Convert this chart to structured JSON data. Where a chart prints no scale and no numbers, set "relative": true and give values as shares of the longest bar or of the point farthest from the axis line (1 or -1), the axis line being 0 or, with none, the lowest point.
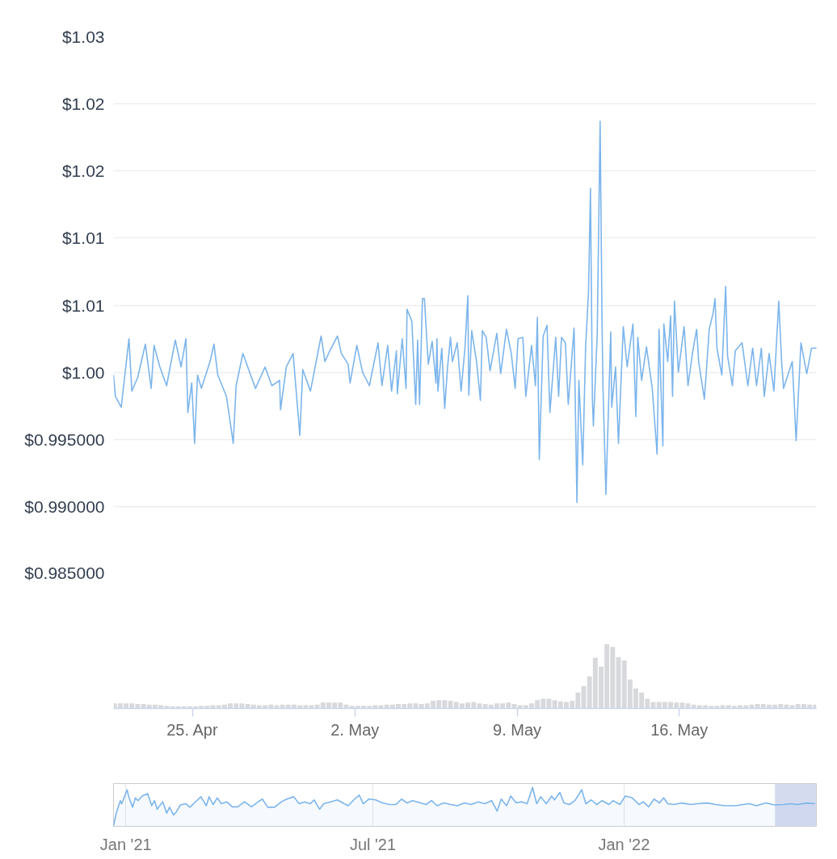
{
  "chart_data": [
    {
      "type": "line",
      "color": "#7cb5ec",
      "xlim": [
        "2022-04-21T14:00",
        "2022-05-21T22:00"
      ],
      "ylim": [
        0.985,
        1.025
      ],
      "yticks": [
        {
          "value": 0.985,
          "label": "$0.985000"
        },
        {
          "value": 0.99,
          "label": "$0.990000"
        },
        {
          "value": 0.995,
          "label": "$0.995000"
        },
        {
          "value": 1.0,
          "label": "$1.00"
        },
        {
          "value": 1.005,
          "label": "$1.01"
        },
        {
          "value": 1.01,
          "label": "$1.01"
        },
        {
          "value": 1.015,
          "label": "$1.02"
        },
        {
          "value": 1.02,
          "label": "$1.02"
        },
        {
          "value": 1.025,
          "label": "$1.03"
        }
      ],
      "grid": "y",
      "tick_labels": "y",
      "x": [
        "2022-04-21T14:00",
        "2022-04-21T16:00",
        "2022-04-21T22:00",
        "2022-04-22T06:00",
        "2022-04-22T09:00",
        "2022-04-22T15:00",
        "2022-04-22T23:00",
        "2022-04-23T05:00",
        "2022-04-23T08:00",
        "2022-04-23T14:00",
        "2022-04-23T21:00",
        "2022-04-24T06:00",
        "2022-04-24T12:00",
        "2022-04-24T17:00",
        "2022-04-24T19:00",
        "2022-04-24T23:00",
        "2022-04-25T02:00",
        "2022-04-25T05:00",
        "2022-04-25T09:00",
        "2022-04-25T18:00",
        "2022-04-25T22:00",
        "2022-04-26T02:00",
        "2022-04-26T11:00",
        "2022-04-26T18:00",
        "2022-04-26T21:00",
        "2022-04-27T04:00",
        "2022-04-27T12:00",
        "2022-04-27T17:00",
        "2022-04-28T03:00",
        "2022-04-28T10:00",
        "2022-04-28T18:00",
        "2022-04-28T19:00",
        "2022-04-29T01:00",
        "2022-04-29T08:00",
        "2022-04-29T15:00",
        "2022-04-29T18:00",
        "2022-04-30T02:00",
        "2022-04-30T13:00",
        "2022-04-30T17:00",
        "2022-04-30T22:00",
        "2022-05-01T06:00",
        "2022-05-01T10:00",
        "2022-05-01T17:00",
        "2022-05-01T19:00",
        "2022-05-02T02:00",
        "2022-05-02T08:00",
        "2022-05-02T15:00",
        "2022-05-03T00:00",
        "2022-05-03T04:00",
        "2022-05-03T10:00",
        "2022-05-03T14:00",
        "2022-05-03T19:00",
        "2022-05-03T20:00",
        "2022-05-04T01:00",
        "2022-05-04T05:00",
        "2022-05-04T06:00",
        "2022-05-04T11:00",
        "2022-05-04T15:00",
        "2022-05-04T17:00",
        "2022-05-04T19:00",
        "2022-05-04T22:00",
        "2022-05-05T00:00",
        "2022-05-05T04:00",
        "2022-05-05T08:00",
        "2022-05-05T12:00",
        "2022-05-05T13:00",
        "2022-05-05T14:00",
        "2022-05-05T18:00",
        "2022-05-05T21:00",
        "2022-05-06T00:00",
        "2022-05-06T03:00",
        "2022-05-06T05:00",
        "2022-05-06T10:00",
        "2022-05-06T14:00",
        "2022-05-06T18:00",
        "2022-05-06T21:00",
        "2022-05-06T22:00",
        "2022-05-07T01:00",
        "2022-05-07T06:00",
        "2022-05-07T10:00",
        "2022-05-07T12:00",
        "2022-05-07T16:00",
        "2022-05-07T20:00",
        "2022-05-08T03:00",
        "2022-05-08T07:00",
        "2022-05-08T13:00",
        "2022-05-08T18:00",
        "2022-05-08T22:00",
        "2022-05-09T01:00",
        "2022-05-09T06:00",
        "2022-05-09T09:00",
        "2022-05-09T15:00",
        "2022-05-09T19:00",
        "2022-05-09T21:00",
        "2022-05-09T23:00",
        "2022-05-10T03:00",
        "2022-05-10T07:00",
        "2022-05-10T10:00",
        "2022-05-10T16:00",
        "2022-05-10T19:00",
        "2022-05-10T22:00",
        "2022-05-11T02:00",
        "2022-05-11T05:00",
        "2022-05-11T11:00",
        "2022-05-11T14:00",
        "2022-05-11T16:00",
        "2022-05-11T20:00",
        "2022-05-11T23:00",
        "2022-05-12T02:00",
        "2022-05-12T04:00",
        "2022-05-12T06:00",
        "2022-05-12T07:00",
        "2022-05-12T11:00",
        "2022-05-12T14:00",
        "2022-05-12T16:00",
        "2022-05-12T17:00",
        "2022-05-12T20:00",
        "2022-05-13T01:00",
        "2022-05-13T02:00",
        "2022-05-13T06:00",
        "2022-05-13T09:00",
        "2022-05-13T14:00",
        "2022-05-13T18:00",
        "2022-05-14T00:00",
        "2022-05-14T03:00",
        "2022-05-14T05:00",
        "2022-05-14T09:00",
        "2022-05-14T14:00",
        "2022-05-14T20:00",
        "2022-05-15T01:00",
        "2022-05-15T03:00",
        "2022-05-15T07:00",
        "2022-05-15T08:00",
        "2022-05-15T12:00",
        "2022-05-15T15:00",
        "2022-05-15T17:00",
        "2022-05-15T19:00",
        "2022-05-15T23:00",
        "2022-05-16T05:00",
        "2022-05-16T09:00",
        "2022-05-16T14:00",
        "2022-05-16T18:00",
        "2022-05-16T20:00",
        "2022-05-17T02:00",
        "2022-05-17T07:00",
        "2022-05-17T11:00",
        "2022-05-17T13:00",
        "2022-05-17T15:00",
        "2022-05-17T17:00",
        "2022-05-17T20:00",
        "2022-05-18T00:00",
        "2022-05-18T02:00",
        "2022-05-18T07:00",
        "2022-05-18T10:00",
        "2022-05-18T17:00",
        "2022-05-18T23:00",
        "2022-05-19T04:00",
        "2022-05-19T08:00",
        "2022-05-19T13:00",
        "2022-05-19T16:00",
        "2022-05-19T21:00",
        "2022-05-20T02:00",
        "2022-05-20T07:00",
        "2022-05-20T10:00",
        "2022-05-20T12:00",
        "2022-05-20T21:00",
        "2022-05-21T01:00",
        "2022-05-21T06:00",
        "2022-05-21T12:00",
        "2022-05-21T17:00",
        "2022-05-21T22:00"
      ],
      "values": [
        0.9998,
        0.9982,
        0.9974,
        1.0025,
        0.9986,
        0.9996,
        1.0021,
        0.9988,
        1.002,
        1.0004,
        0.999,
        1.0024,
        1.0004,
        1.0025,
        0.997,
        0.9992,
        0.9947,
        0.9998,
        0.9988,
        1.0008,
        1.0021,
        0.9998,
        0.9982,
        0.9947,
        0.999,
        1.0014,
        0.9998,
        0.9988,
        1.0004,
        0.999,
        0.9994,
        0.9972,
        1.0004,
        1.0014,
        0.9953,
        1.0002,
        0.9986,
        1.0027,
        1.0008,
        1.0016,
        1.0027,
        1.0014,
        1.0006,
        0.9992,
        1.002,
        1.0,
        0.999,
        1.0022,
        0.999,
        1.002,
        0.9986,
        1.0016,
        0.9984,
        1.0025,
        0.9988,
        1.0047,
        1.0038,
        0.9976,
        1.0024,
        0.9976,
        1.0055,
        1.0055,
        1.0006,
        1.0023,
        0.9992,
        1.0025,
        0.9986,
        1.0018,
        0.9973,
        1.0004,
        1.0026,
        1.0008,
        1.0022,
        0.9986,
        1.0018,
        1.0057,
        0.9983,
        1.0031,
        1.0008,
        0.9979,
        1.0031,
        1.0026,
        1.0001,
        1.0029,
        0.9999,
        1.0032,
        1.0014,
        0.9988,
        1.0025,
        1.0026,
        0.9982,
        1.002,
        0.999,
        1.0041,
        0.9935,
        1.0027,
        1.0035,
        0.997,
        1.0026,
        0.9982,
        1.0026,
        1.0022,
        0.9976,
        1.0033,
        0.9903,
        0.9994,
        0.9931,
        1.002,
        1.006,
        1.0137,
        0.998,
        0.996,
        1.0028,
        1.0187,
        1.0036,
        0.9988,
        0.9909,
        1.003,
        0.9974,
        1.0004,
        0.9947,
        1.0034,
        1.0004,
        1.0036,
        0.9967,
        1.0026,
        0.9994,
        1.0019,
        0.9988,
        0.9939,
        1.0032,
        0.9945,
        1.0036,
        1.0008,
        1.0042,
        0.9982,
        1.0053,
        1.0,
        1.0034,
        0.999,
        1.0016,
        1.0032,
        1.0008,
        0.998,
        1.0032,
        1.0044,
        1.0055,
        1.0018,
        1.001,
        0.9998,
        1.0064,
        1.0012,
        0.999,
        1.0016,
        1.0022,
        0.999,
        1.0018,
        0.999,
        1.0018,
        0.9982,
        1.0014,
        0.9986,
        1.0053,
        1.0008,
        0.9988,
        1.0008,
        0.9949,
        1.0022,
        0.9999,
        1.0018,
        1.0018
      ]
    },
    {
      "type": "bar",
      "relative": true,
      "color": "#d8d9dc",
      "xlim": [
        "2022-04-21T14:00",
        "2022-05-21T22:00"
      ],
      "xticks": [
        {
          "value": "2022-04-25",
          "label": "25. Apr"
        },
        {
          "value": "2022-05-02",
          "label": "2. May"
        },
        {
          "value": "2022-05-09",
          "label": "9. May"
        },
        {
          "value": "2022-05-16",
          "label": "16. May"
        }
      ],
      "x": [
        "2022-04-21T15:00",
        "2022-04-21T21:00",
        "2022-04-22T03:00",
        "2022-04-22T09:00",
        "2022-04-22T15:00",
        "2022-04-22T21:00",
        "2022-04-23T03:00",
        "2022-04-23T09:00",
        "2022-04-23T15:00",
        "2022-04-23T21:00",
        "2022-04-24T03:00",
        "2022-04-24T09:00",
        "2022-04-24T15:00",
        "2022-04-24T21:00",
        "2022-04-25T03:00",
        "2022-04-25T09:00",
        "2022-04-25T15:00",
        "2022-04-25T21:00",
        "2022-04-26T03:00",
        "2022-04-26T09:00",
        "2022-04-26T15:00",
        "2022-04-26T21:00",
        "2022-04-27T03:00",
        "2022-04-27T09:00",
        "2022-04-27T15:00",
        "2022-04-27T21:00",
        "2022-04-28T03:00",
        "2022-04-28T09:00",
        "2022-04-28T15:00",
        "2022-04-28T21:00",
        "2022-04-29T03:00",
        "2022-04-29T09:00",
        "2022-04-29T15:00",
        "2022-04-29T21:00",
        "2022-04-30T03:00",
        "2022-04-30T09:00",
        "2022-04-30T15:00",
        "2022-04-30T21:00",
        "2022-05-01T03:00",
        "2022-05-01T09:00",
        "2022-05-01T15:00",
        "2022-05-01T21:00",
        "2022-05-02T03:00",
        "2022-05-02T09:00",
        "2022-05-02T15:00",
        "2022-05-02T21:00",
        "2022-05-03T03:00",
        "2022-05-03T09:00",
        "2022-05-03T15:00",
        "2022-05-03T21:00",
        "2022-05-04T03:00",
        "2022-05-04T09:00",
        "2022-05-04T15:00",
        "2022-05-04T21:00",
        "2022-05-05T03:00",
        "2022-05-05T09:00",
        "2022-05-05T15:00",
        "2022-05-05T21:00",
        "2022-05-06T03:00",
        "2022-05-06T09:00",
        "2022-05-06T15:00",
        "2022-05-06T21:00",
        "2022-05-07T03:00",
        "2022-05-07T09:00",
        "2022-05-07T15:00",
        "2022-05-07T21:00",
        "2022-05-08T03:00",
        "2022-05-08T09:00",
        "2022-05-08T15:00",
        "2022-05-08T21:00",
        "2022-05-09T03:00",
        "2022-05-09T09:00",
        "2022-05-09T15:00",
        "2022-05-09T21:00",
        "2022-05-10T03:00",
        "2022-05-10T09:00",
        "2022-05-10T15:00",
        "2022-05-10T21:00",
        "2022-05-11T03:00",
        "2022-05-11T09:00",
        "2022-05-11T15:00",
        "2022-05-11T21:00",
        "2022-05-12T03:00",
        "2022-05-12T09:00",
        "2022-05-12T15:00",
        "2022-05-12T21:00",
        "2022-05-13T03:00",
        "2022-05-13T09:00",
        "2022-05-13T15:00",
        "2022-05-13T21:00",
        "2022-05-14T03:00",
        "2022-05-14T09:00",
        "2022-05-14T15:00",
        "2022-05-14T21:00",
        "2022-05-15T03:00",
        "2022-05-15T09:00",
        "2022-05-15T15:00",
        "2022-05-15T21:00",
        "2022-05-16T03:00",
        "2022-05-16T09:00",
        "2022-05-16T15:00",
        "2022-05-16T21:00",
        "2022-05-17T03:00",
        "2022-05-17T09:00",
        "2022-05-17T15:00",
        "2022-05-17T21:00",
        "2022-05-18T03:00",
        "2022-05-18T09:00",
        "2022-05-18T15:00",
        "2022-05-18T21:00",
        "2022-05-19T03:00",
        "2022-05-19T09:00",
        "2022-05-19T15:00",
        "2022-05-19T21:00",
        "2022-05-20T03:00",
        "2022-05-20T09:00",
        "2022-05-20T15:00",
        "2022-05-20T21:00",
        "2022-05-21T03:00",
        "2022-05-21T09:00",
        "2022-05-21T15:00",
        "2022-05-21T21:00"
      ],
      "values": [
        0.08,
        0.08,
        0.08,
        0.08,
        0.07,
        0.07,
        0.06,
        0.06,
        0.05,
        0.04,
        0.03,
        0.03,
        0.03,
        0.03,
        0.03,
        0.04,
        0.04,
        0.05,
        0.05,
        0.06,
        0.08,
        0.08,
        0.08,
        0.07,
        0.06,
        0.05,
        0.05,
        0.06,
        0.05,
        0.06,
        0.06,
        0.06,
        0.05,
        0.05,
        0.05,
        0.06,
        0.09,
        0.09,
        0.09,
        0.09,
        0.06,
        0.04,
        0.04,
        0.04,
        0.04,
        0.05,
        0.05,
        0.06,
        0.06,
        0.07,
        0.07,
        0.08,
        0.08,
        0.07,
        0.08,
        0.12,
        0.13,
        0.13,
        0.12,
        0.1,
        0.08,
        0.09,
        0.1,
        0.08,
        0.07,
        0.06,
        0.08,
        0.08,
        0.09,
        0.07,
        0.05,
        0.05,
        0.08,
        0.13,
        0.15,
        0.15,
        0.13,
        0.11,
        0.1,
        0.12,
        0.25,
        0.35,
        0.5,
        0.79,
        0.65,
        1.0,
        0.96,
        0.8,
        0.75,
        0.45,
        0.31,
        0.25,
        0.15,
        0.1,
        0.1,
        0.1,
        0.1,
        0.09,
        0.09,
        0.08,
        0.06,
        0.05,
        0.05,
        0.04,
        0.04,
        0.05,
        0.05,
        0.04,
        0.05,
        0.05,
        0.06,
        0.07,
        0.07,
        0.06,
        0.06,
        0.07,
        0.06,
        0.05,
        0.07,
        0.07,
        0.06,
        0.06
      ]
    },
    {
      "type": "area",
      "relative": true,
      "color": "#7cb5ec",
      "grid": "x",
      "xlim": [
        "2020-12-23",
        "2022-05-21T22:00"
      ],
      "xticks": [
        {
          "value": "2021-01-01",
          "label": "Jan '21"
        },
        {
          "value": "2021-07-01",
          "label": "Jul '21"
        },
        {
          "value": "2022-01-01",
          "label": "Jan '22"
        }
      ],
      "bands": [
        {
          "axis": "x",
          "from": "2022-04-21T14:00",
          "to": "2022-05-21T22:00",
          "color": "#d5dbee"
        }
      ],
      "x": [
        "2020-12-23",
        "2020-12-25",
        "2020-12-28",
        "2020-12-29",
        "2021-01-02",
        "2021-01-03",
        "2021-01-06",
        "2021-01-08",
        "2021-01-10",
        "2021-01-13",
        "2021-01-17",
        "2021-01-20",
        "2021-01-22",
        "2021-01-24",
        "2021-01-28",
        "2021-01-31",
        "2021-02-02",
        "2021-02-05",
        "2021-02-07",
        "2021-02-10",
        "2021-02-14",
        "2021-02-17",
        "2021-02-22",
        "2021-02-25",
        "2021-03-01",
        "2021-03-03",
        "2021-03-06",
        "2021-03-09",
        "2021-03-12",
        "2021-03-16",
        "2021-03-20",
        "2021-03-24",
        "2021-03-29",
        "2021-04-03",
        "2021-04-08",
        "2021-04-11",
        "2021-04-15",
        "2021-04-20",
        "2021-04-25",
        "2021-04-29",
        "2021-05-04",
        "2021-05-08",
        "2021-05-12",
        "2021-05-16",
        "2021-05-19",
        "2021-05-23",
        "2021-05-26",
        "2021-05-31",
        "2021-06-05",
        "2021-06-10",
        "2021-06-13",
        "2021-06-17",
        "2021-06-21",
        "2021-06-24",
        "2021-06-28",
        "2021-07-03",
        "2021-07-08",
        "2021-07-13",
        "2021-07-18",
        "2021-07-22",
        "2021-07-26",
        "2021-07-30",
        "2021-08-05",
        "2021-08-09",
        "2021-08-13",
        "2021-08-17",
        "2021-08-22",
        "2021-08-27",
        "2021-09-01",
        "2021-09-06",
        "2021-09-11",
        "2021-09-16",
        "2021-09-21",
        "2021-09-26",
        "2021-09-30",
        "2021-10-03",
        "2021-10-07",
        "2021-10-10",
        "2021-10-14",
        "2021-10-18",
        "2021-10-22",
        "2021-10-26",
        "2021-10-29",
        "2021-11-01",
        "2021-11-05",
        "2021-11-09",
        "2021-11-11",
        "2021-11-15",
        "2021-11-18",
        "2021-11-22",
        "2021-11-26",
        "2021-12-01",
        "2021-12-04",
        "2021-12-08",
        "2021-12-12",
        "2021-12-16",
        "2021-12-21",
        "2021-12-24",
        "2021-12-29",
        "2022-01-02",
        "2022-01-07",
        "2022-01-12",
        "2022-01-15",
        "2022-01-19",
        "2022-01-23",
        "2022-01-27",
        "2022-01-30",
        "2022-02-02",
        "2022-02-07",
        "2022-02-12",
        "2022-02-19",
        "2022-02-24",
        "2022-03-03",
        "2022-03-09",
        "2022-03-16",
        "2022-03-24",
        "2022-03-29",
        "2022-04-03",
        "2022-04-08",
        "2022-04-15",
        "2022-04-21",
        "2022-04-28",
        "2022-05-03",
        "2022-05-08",
        "2022-05-15",
        "2022-05-21"
      ],
      "values": [
        0,
        0.34,
        0.66,
        0.58,
        0.94,
        0.78,
        0.49,
        0.73,
        0.66,
        0.78,
        0.84,
        0.53,
        0.66,
        0.44,
        0.63,
        0.34,
        0.49,
        0.29,
        0.37,
        0.55,
        0.58,
        0.49,
        0.66,
        0.76,
        0.53,
        0.76,
        0.56,
        0.73,
        0.58,
        0.63,
        0.5,
        0.5,
        0.63,
        0.5,
        0.63,
        0.7,
        0.49,
        0.49,
        0.63,
        0.7,
        0.76,
        0.58,
        0.63,
        0.58,
        0.68,
        0.44,
        0.58,
        0.63,
        0.68,
        0.58,
        0.53,
        0.68,
        0.8,
        0.58,
        0.7,
        0.68,
        0.6,
        0.56,
        0.56,
        0.7,
        0.6,
        0.66,
        0.6,
        0.56,
        0.66,
        0.53,
        0.6,
        0.56,
        0.53,
        0.6,
        0.56,
        0.63,
        0.58,
        0.66,
        0.39,
        0.7,
        0.53,
        0.78,
        0.6,
        0.63,
        0.58,
        1.0,
        0.58,
        0.76,
        0.58,
        0.78,
        0.68,
        0.87,
        0.6,
        0.56,
        0.66,
        0.94,
        0.58,
        0.68,
        0.56,
        0.66,
        0.56,
        0.66,
        0.56,
        0.78,
        0.73,
        0.56,
        0.63,
        0.5,
        0.7,
        0.6,
        0.73,
        0.58,
        0.56,
        0.6,
        0.56,
        0.58,
        0.6,
        0.56,
        0.53,
        0.53,
        0.56,
        0.58,
        0.53,
        0.6,
        0.55,
        0.56,
        0.58,
        0.56,
        0.6,
        0.58
      ]
    }
  ]
}
